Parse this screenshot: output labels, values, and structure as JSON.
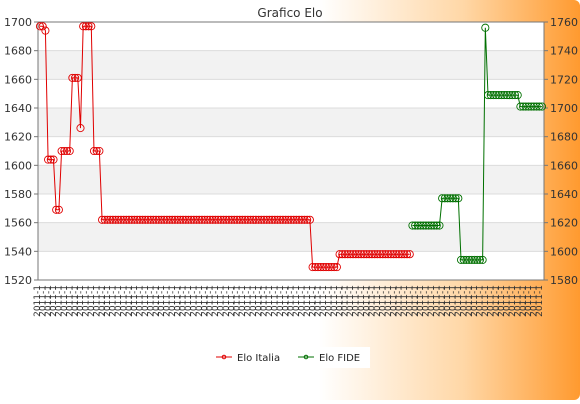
{
  "chart_data": {
    "type": "line",
    "title": "Grafico Elo",
    "left_axis": {
      "ylim": [
        1520,
        1700
      ],
      "ticks": [
        1520,
        1540,
        1560,
        1580,
        1600,
        1620,
        1640,
        1660,
        1680,
        1700
      ]
    },
    "right_axis": {
      "ylim": [
        1580,
        1760
      ],
      "ticks": [
        1580,
        1600,
        1620,
        1640,
        1660,
        1680,
        1700,
        1720,
        1740,
        1760
      ]
    },
    "grid": true,
    "legend_position": "bottom-center",
    "x_label_text": "2011-1",
    "series": [
      {
        "name": "Elo Italia",
        "axis": "left",
        "color": "#e00000",
        "points": [
          [
            0,
            1697
          ],
          [
            1,
            1697
          ],
          [
            2,
            1694
          ],
          [
            3,
            1604
          ],
          [
            4,
            1604
          ],
          [
            5,
            1604
          ],
          [
            6,
            1569
          ],
          [
            7,
            1569
          ],
          [
            8,
            1610
          ],
          [
            9,
            1610
          ],
          [
            10,
            1610
          ],
          [
            11,
            1610
          ],
          [
            12,
            1661
          ],
          [
            13,
            1661
          ],
          [
            14,
            1661
          ],
          [
            15,
            1626
          ],
          [
            16,
            1697
          ],
          [
            17,
            1697
          ],
          [
            18,
            1697
          ],
          [
            19,
            1697
          ],
          [
            20,
            1610
          ],
          [
            21,
            1610
          ],
          [
            22,
            1610
          ],
          [
            23,
            1562
          ],
          [
            24,
            1562
          ],
          [
            25,
            1562
          ],
          [
            26,
            1562
          ],
          [
            27,
            1562
          ],
          [
            28,
            1562
          ],
          [
            29,
            1562
          ],
          [
            30,
            1562
          ],
          [
            31,
            1562
          ],
          [
            32,
            1562
          ],
          [
            33,
            1562
          ],
          [
            34,
            1562
          ],
          [
            35,
            1562
          ],
          [
            36,
            1562
          ],
          [
            37,
            1562
          ],
          [
            38,
            1562
          ],
          [
            39,
            1562
          ],
          [
            40,
            1562
          ],
          [
            41,
            1562
          ],
          [
            42,
            1562
          ],
          [
            43,
            1562
          ],
          [
            44,
            1562
          ],
          [
            45,
            1562
          ],
          [
            46,
            1562
          ],
          [
            47,
            1562
          ],
          [
            48,
            1562
          ],
          [
            49,
            1562
          ],
          [
            50,
            1562
          ],
          [
            51,
            1562
          ],
          [
            52,
            1562
          ],
          [
            53,
            1562
          ],
          [
            54,
            1562
          ],
          [
            55,
            1562
          ],
          [
            56,
            1562
          ],
          [
            57,
            1562
          ],
          [
            58,
            1562
          ],
          [
            59,
            1562
          ],
          [
            60,
            1562
          ],
          [
            61,
            1562
          ],
          [
            62,
            1562
          ],
          [
            63,
            1562
          ],
          [
            64,
            1562
          ],
          [
            65,
            1562
          ],
          [
            66,
            1562
          ],
          [
            67,
            1562
          ],
          [
            68,
            1562
          ],
          [
            69,
            1562
          ],
          [
            70,
            1562
          ],
          [
            71,
            1562
          ],
          [
            72,
            1562
          ],
          [
            73,
            1562
          ],
          [
            74,
            1562
          ],
          [
            75,
            1562
          ],
          [
            76,
            1562
          ],
          [
            77,
            1562
          ],
          [
            78,
            1562
          ],
          [
            79,
            1562
          ],
          [
            80,
            1562
          ],
          [
            81,
            1562
          ],
          [
            82,
            1562
          ],
          [
            83,
            1562
          ],
          [
            84,
            1562
          ],
          [
            85,
            1562
          ],
          [
            86,
            1562
          ],
          [
            87,
            1562
          ],
          [
            88,
            1562
          ],
          [
            89,
            1562
          ],
          [
            90,
            1562
          ],
          [
            91,
            1562
          ],
          [
            92,
            1562
          ],
          [
            93,
            1562
          ],
          [
            94,
            1562
          ],
          [
            95,
            1562
          ],
          [
            96,
            1562
          ],
          [
            97,
            1562
          ],
          [
            98,
            1562
          ],
          [
            99,
            1562
          ],
          [
            100,
            1562
          ],
          [
            101,
            1529
          ],
          [
            102,
            1529
          ],
          [
            103,
            1529
          ],
          [
            104,
            1529
          ],
          [
            105,
            1529
          ],
          [
            106,
            1529
          ],
          [
            107,
            1529
          ],
          [
            108,
            1529
          ],
          [
            109,
            1529
          ],
          [
            110,
            1529
          ],
          [
            111,
            1538
          ],
          [
            112,
            1538
          ],
          [
            113,
            1538
          ],
          [
            114,
            1538
          ],
          [
            115,
            1538
          ],
          [
            116,
            1538
          ],
          [
            117,
            1538
          ],
          [
            118,
            1538
          ],
          [
            119,
            1538
          ],
          [
            120,
            1538
          ],
          [
            121,
            1538
          ],
          [
            122,
            1538
          ],
          [
            123,
            1538
          ],
          [
            124,
            1538
          ],
          [
            125,
            1538
          ],
          [
            126,
            1538
          ],
          [
            127,
            1538
          ],
          [
            128,
            1538
          ],
          [
            129,
            1538
          ],
          [
            130,
            1538
          ],
          [
            131,
            1538
          ],
          [
            132,
            1538
          ],
          [
            133,
            1538
          ],
          [
            134,
            1538
          ],
          [
            135,
            1538
          ],
          [
            136,
            1538
          ],
          [
            137,
            1538
          ]
        ]
      },
      {
        "name": "Elo FIDE",
        "axis": "right",
        "color": "#007000",
        "points": [
          [
            138,
            1618
          ],
          [
            139,
            1618
          ],
          [
            140,
            1618
          ],
          [
            141,
            1618
          ],
          [
            142,
            1618
          ],
          [
            143,
            1618
          ],
          [
            144,
            1618
          ],
          [
            145,
            1618
          ],
          [
            146,
            1618
          ],
          [
            147,
            1618
          ],
          [
            148,
            1618
          ],
          [
            149,
            1637
          ],
          [
            150,
            1637
          ],
          [
            151,
            1637
          ],
          [
            152,
            1637
          ],
          [
            153,
            1637
          ],
          [
            154,
            1637
          ],
          [
            155,
            1637
          ],
          [
            156,
            1594
          ],
          [
            157,
            1594
          ],
          [
            158,
            1594
          ],
          [
            159,
            1594
          ],
          [
            160,
            1594
          ],
          [
            161,
            1594
          ],
          [
            162,
            1594
          ],
          [
            163,
            1594
          ],
          [
            164,
            1594
          ],
          [
            165,
            1756
          ],
          [
            166,
            1709
          ],
          [
            167,
            1709
          ],
          [
            168,
            1709
          ],
          [
            169,
            1709
          ],
          [
            170,
            1709
          ],
          [
            171,
            1709
          ],
          [
            172,
            1709
          ],
          [
            173,
            1709
          ],
          [
            174,
            1709
          ],
          [
            175,
            1709
          ],
          [
            176,
            1709
          ],
          [
            177,
            1709
          ],
          [
            178,
            1701
          ],
          [
            179,
            1701
          ],
          [
            180,
            1701
          ],
          [
            181,
            1701
          ],
          [
            182,
            1701
          ],
          [
            183,
            1701
          ],
          [
            184,
            1701
          ],
          [
            185,
            1701
          ],
          [
            186,
            1701
          ]
        ]
      }
    ]
  }
}
